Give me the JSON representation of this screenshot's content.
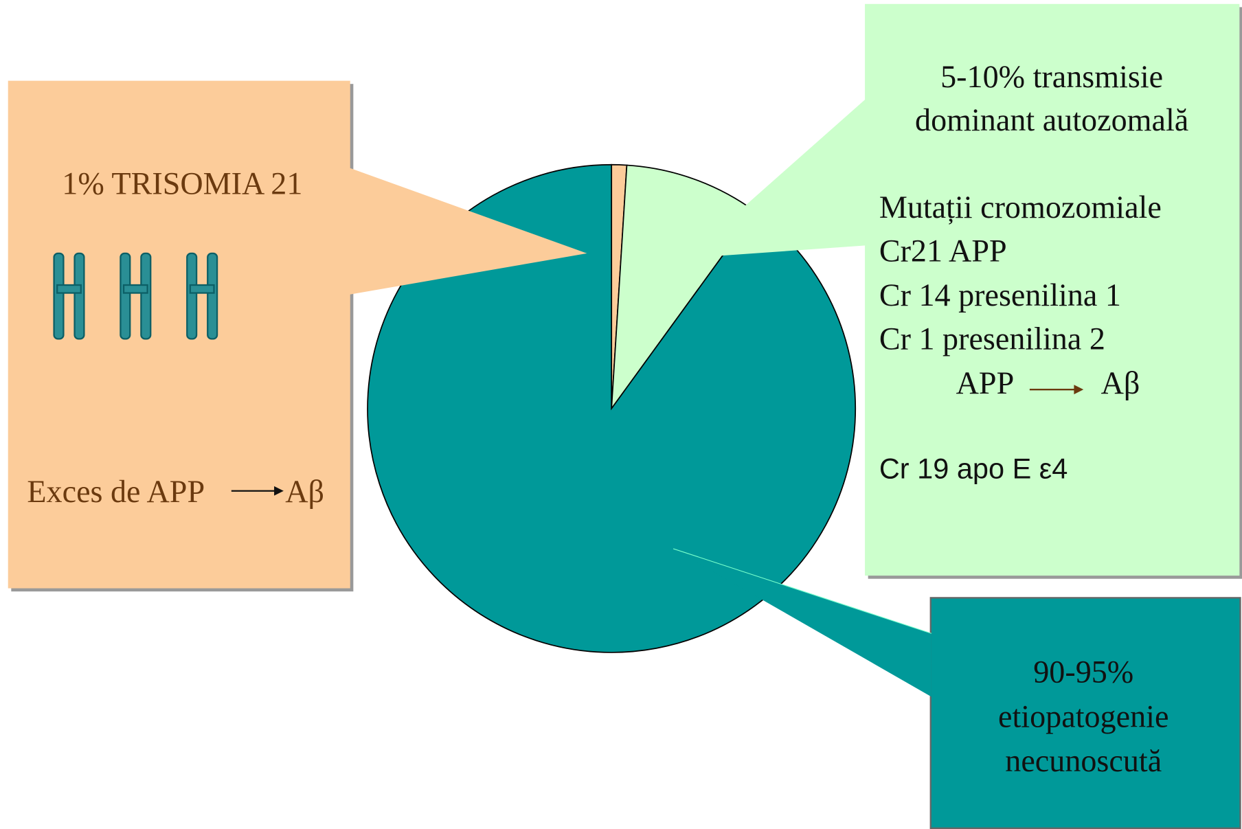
{
  "chart_data": {
    "type": "pie",
    "values": [
      1,
      9,
      90
    ],
    "colors": [
      "#fccc9a",
      "#ccffcc",
      "#009999"
    ],
    "annotations": [
      {
        "lines": [
          "1% TRISOMIA 21",
          "Exces de APP",
          "Aβ"
        ]
      },
      {
        "lines": [
          "5-10% transmisie",
          "dominant autozomală",
          "Mutații cromozomiale",
          "Cr21  APP",
          "Cr 14 presenilina 1",
          "Cr 1   presenilina 2",
          "APP",
          "Aβ",
          "Cr 19 apo E ε4"
        ]
      },
      {
        "lines": [
          "90-95%",
          "etiopatogenie",
          "necunoscută"
        ]
      }
    ]
  }
}
